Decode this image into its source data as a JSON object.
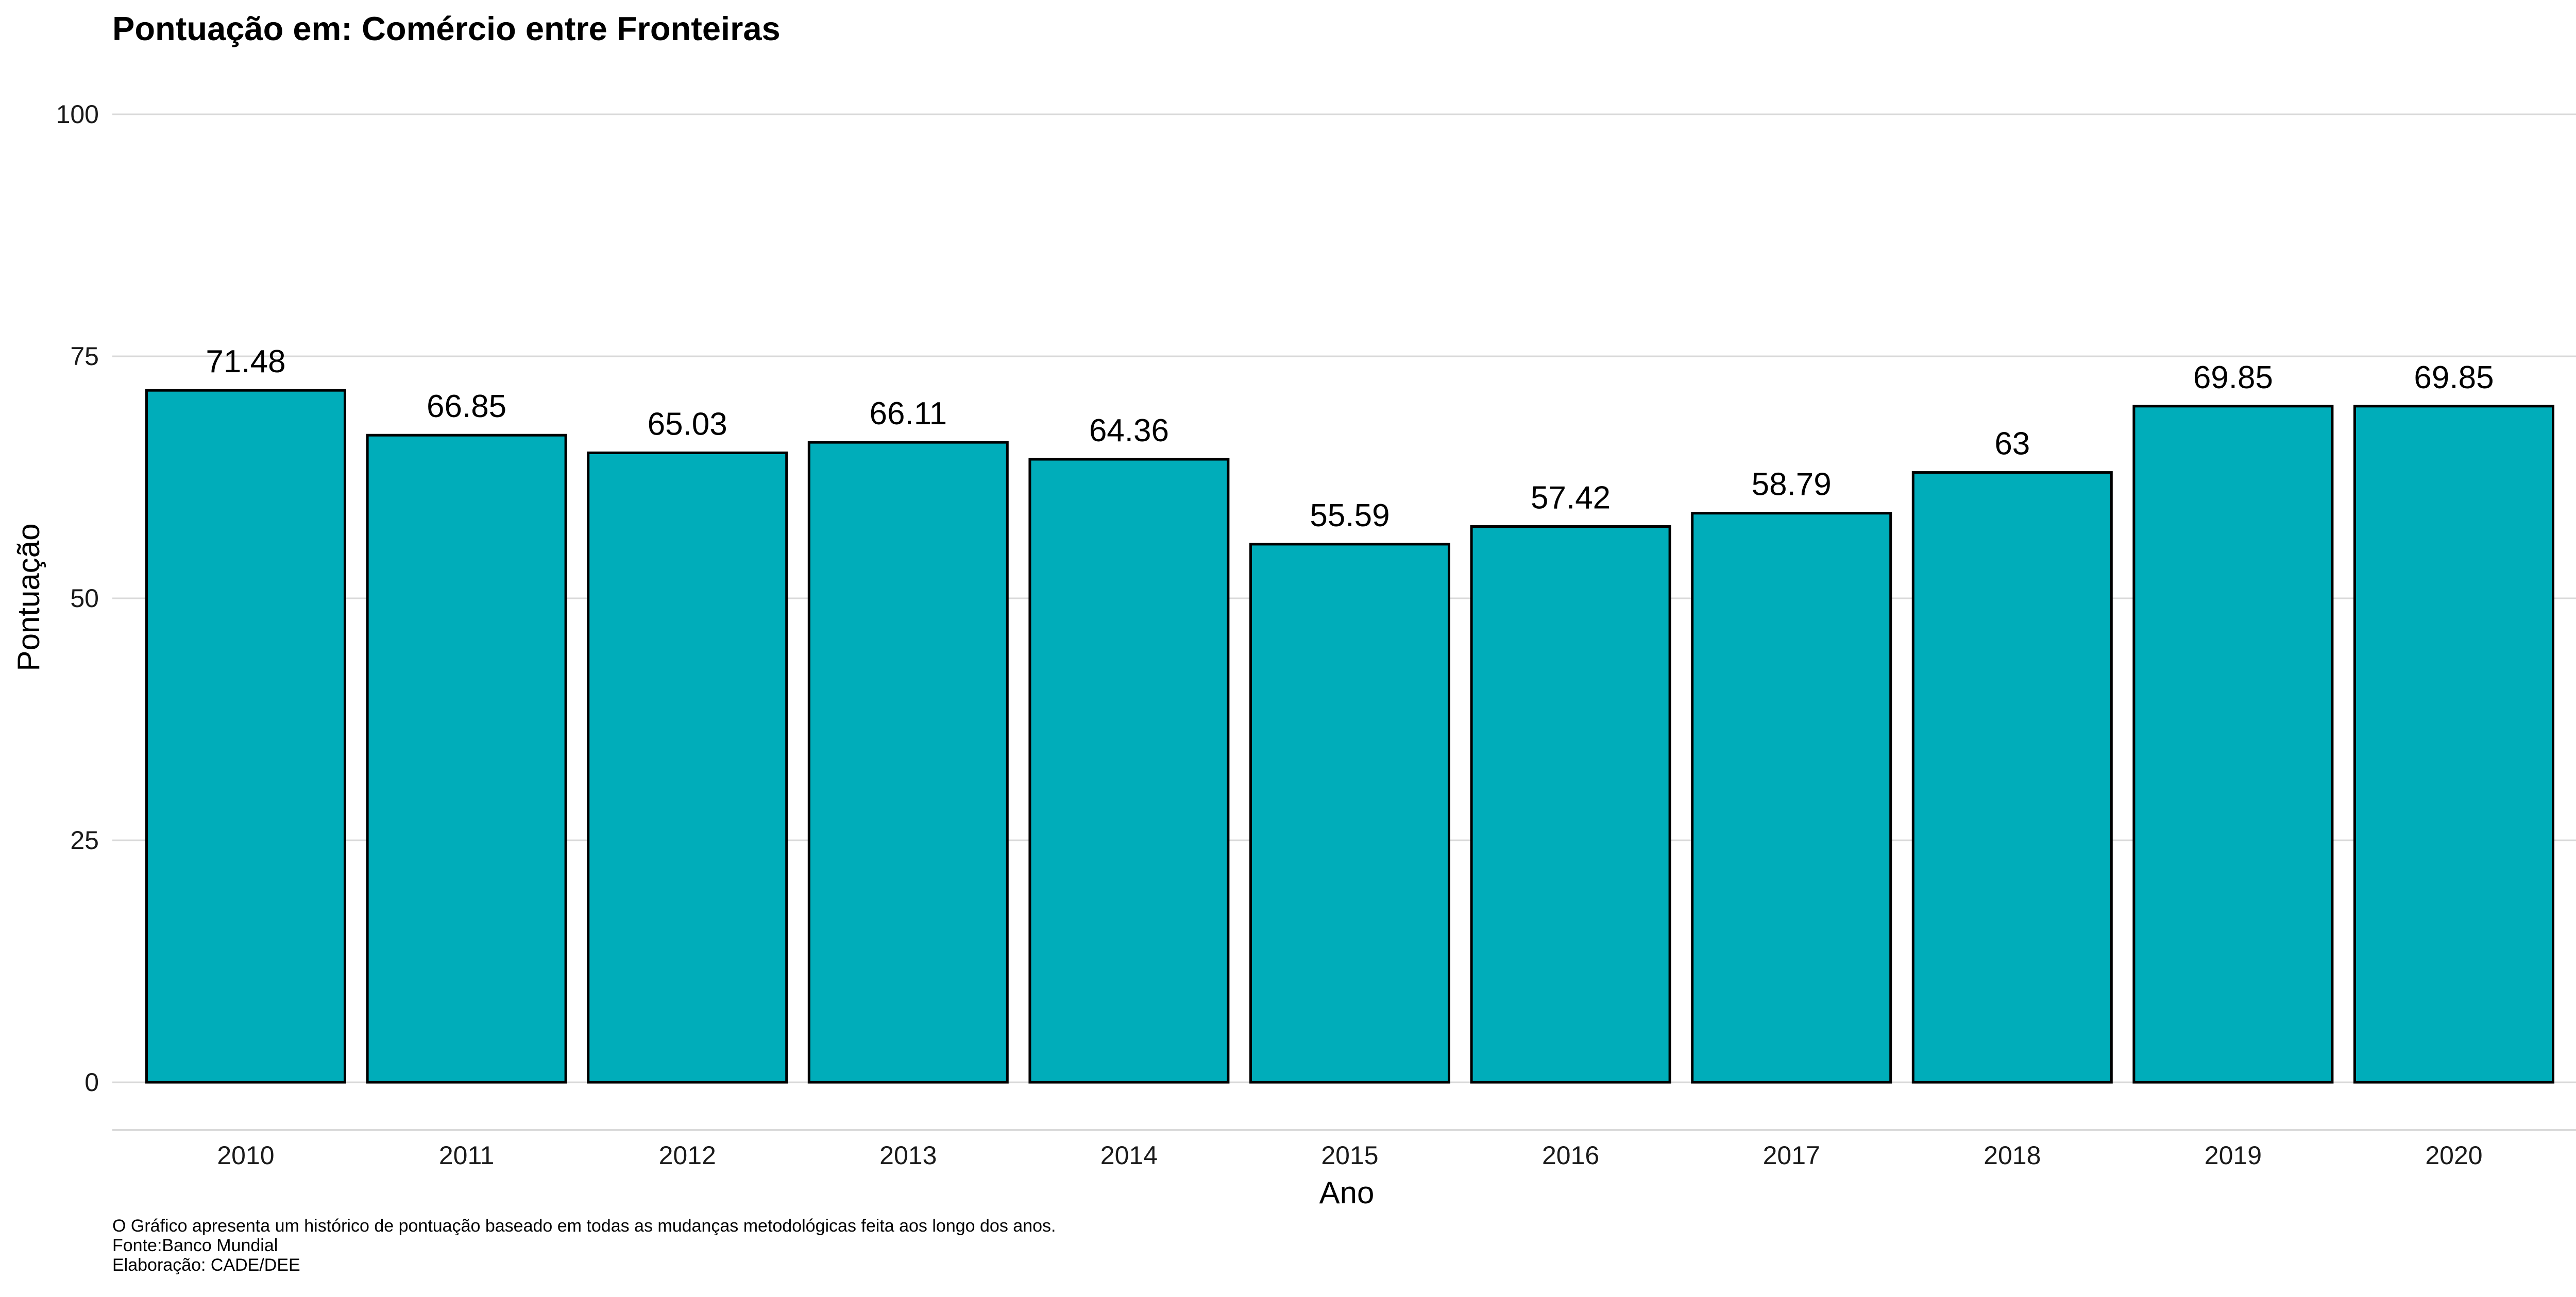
{
  "chart_data": {
    "type": "bar",
    "title": "Pontuação em: Comércio entre Fronteiras",
    "xlabel": "Ano",
    "ylabel": "Pontuação",
    "ylim": [
      0,
      100
    ],
    "yticks": [
      "0",
      "25",
      "50",
      "75",
      "100"
    ],
    "categories": [
      "2010",
      "2011",
      "2012",
      "2013",
      "2014",
      "2015",
      "2016",
      "2017",
      "2018",
      "2019",
      "2020"
    ],
    "values": [
      71.48,
      66.85,
      65.03,
      66.11,
      64.36,
      55.59,
      57.42,
      58.79,
      63,
      69.85,
      69.85
    ],
    "data_labels": [
      "71.48",
      "66.85",
      "65.03",
      "66.11",
      "64.36",
      "55.59",
      "57.42",
      "58.79",
      "63",
      "69.85",
      "69.85"
    ],
    "grid": true,
    "legend": "none",
    "bar_color": "#00ADBA",
    "bar_outline": "#000000",
    "caption": [
      "O Gráfico apresenta um histórico de pontuação baseado em todas as mudanças metodológicas feita aos longo dos anos.",
      "Fonte:Banco Mundial",
      "Elaboração: CADE/DEE"
    ]
  }
}
